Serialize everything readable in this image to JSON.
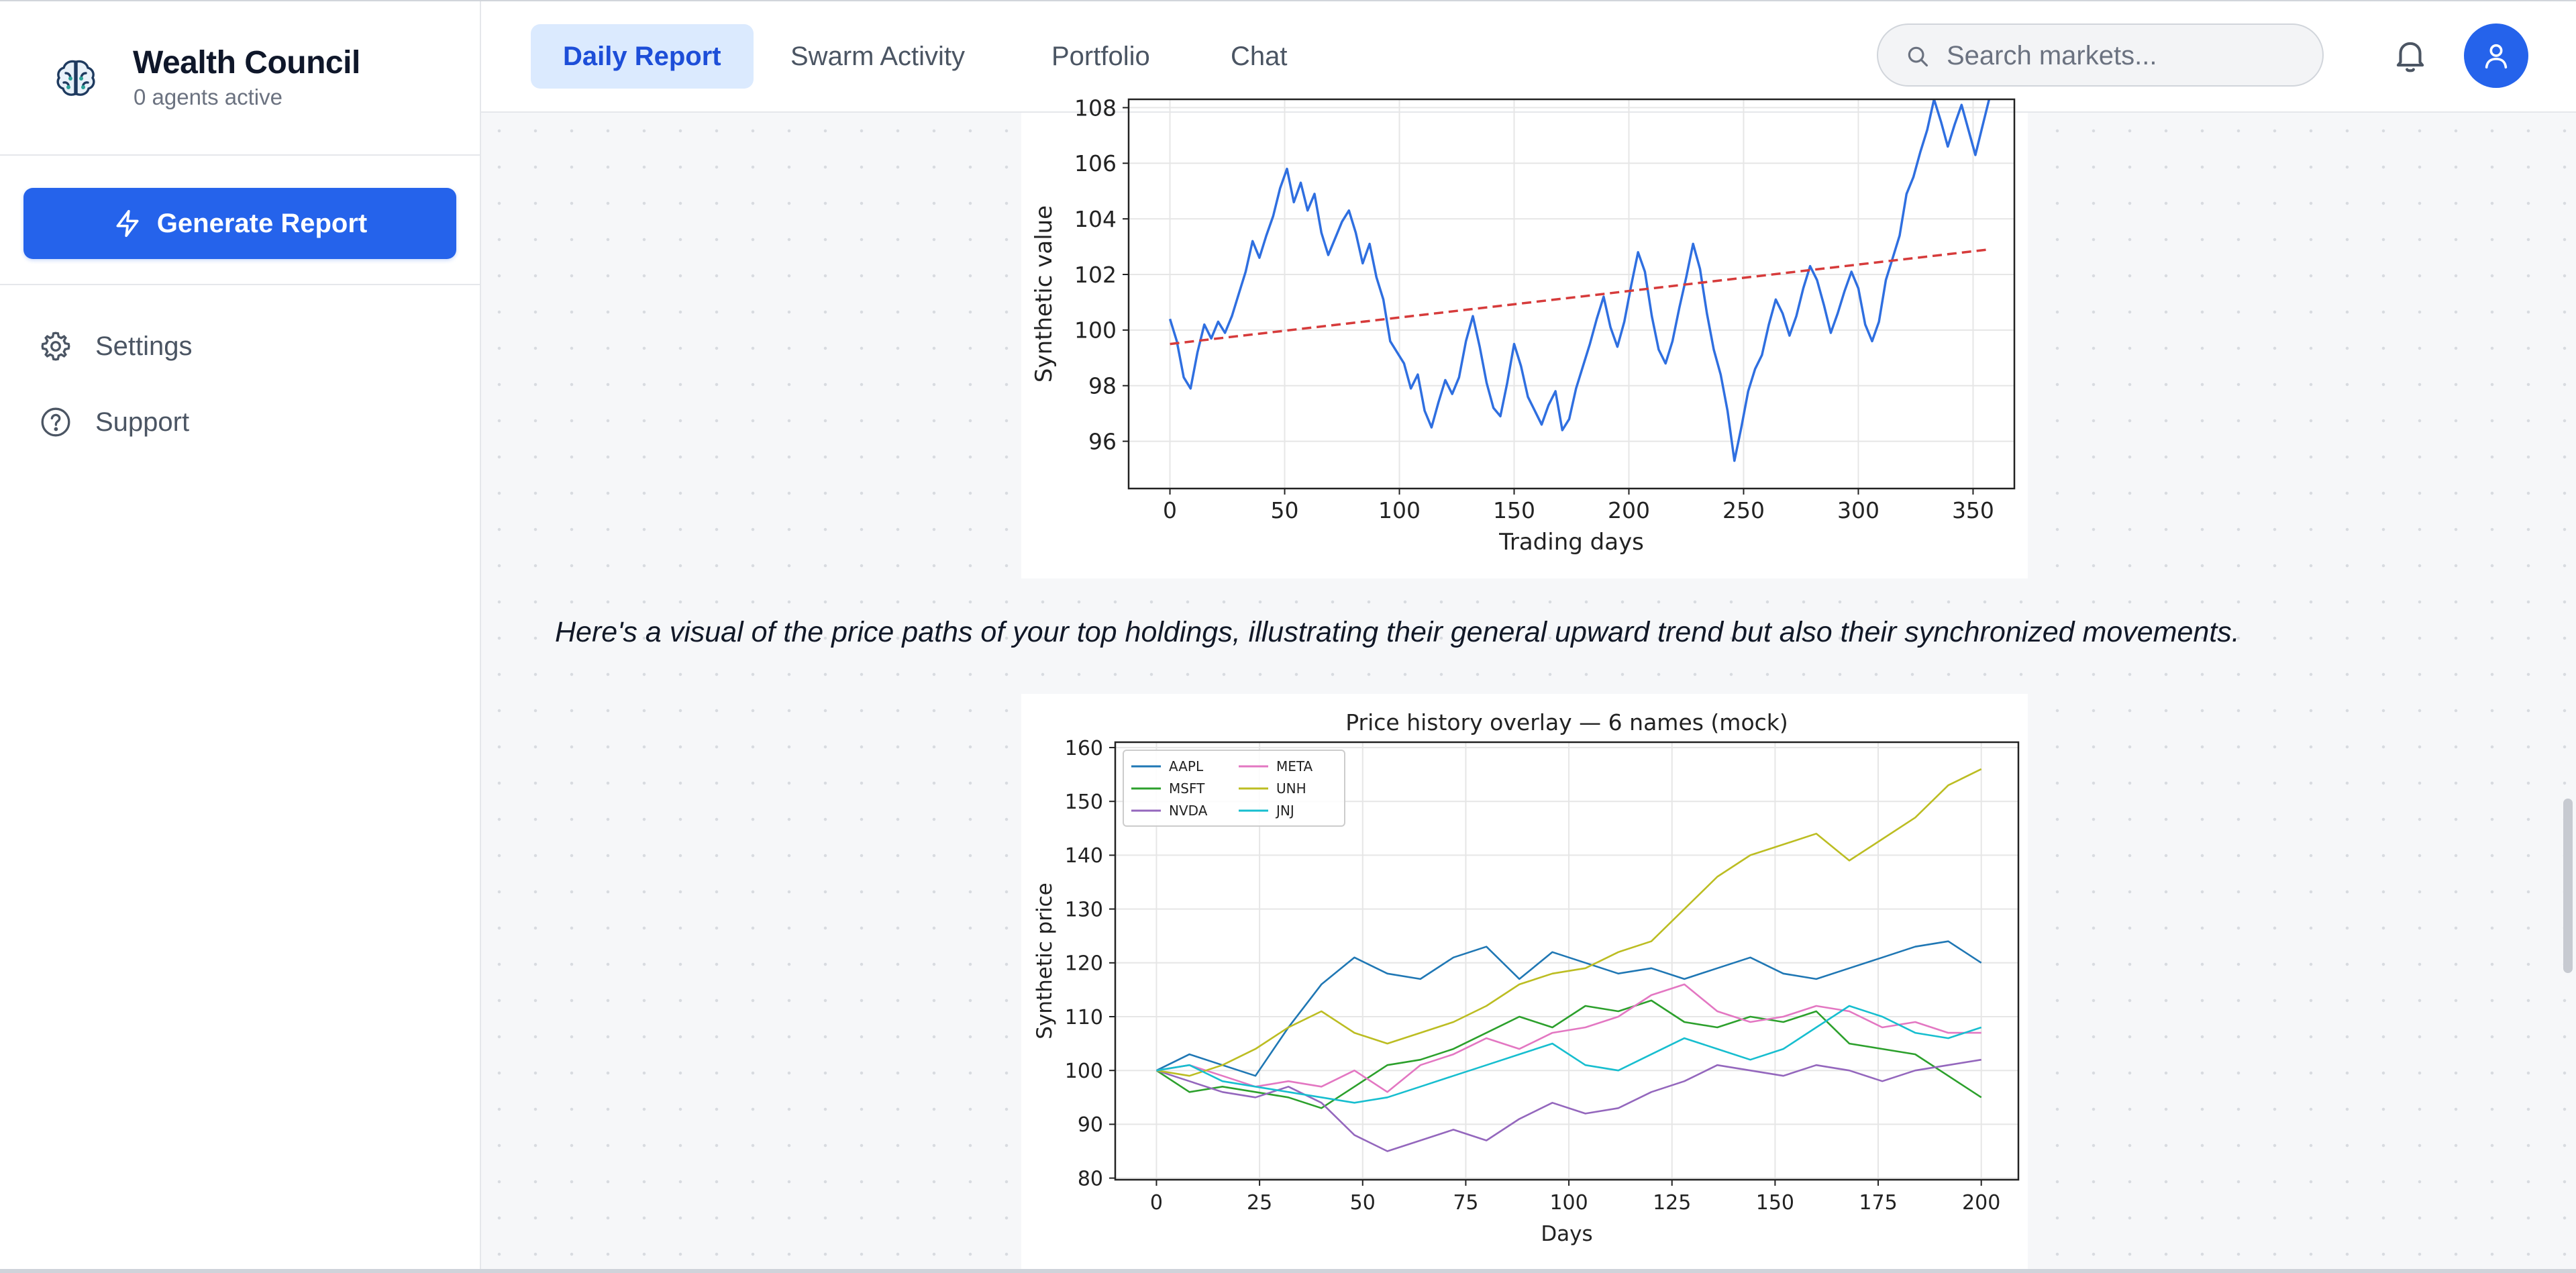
{
  "app": {
    "name": "Wealth Council",
    "agents_status": "0 agents active",
    "logo_icon": "brain-icon"
  },
  "sidebar": {
    "generate_label": "Generate Report",
    "items": [
      {
        "label": "Settings",
        "icon": "gear-icon"
      },
      {
        "label": "Support",
        "icon": "help-circle-icon"
      }
    ]
  },
  "header": {
    "tabs": [
      {
        "label": "Daily Report",
        "active": true
      },
      {
        "label": "Swarm Activity",
        "active": false
      },
      {
        "label": "Portfolio",
        "active": false
      },
      {
        "label": "Chat",
        "active": false
      }
    ],
    "search_placeholder": "Search markets..."
  },
  "main": {
    "caption": "Here's a visual of the price paths of your top holdings, illustrating their general upward trend but also their synchronized movements."
  },
  "colors": {
    "accent": "#2563eb",
    "active_tab_bg": "#dbeafe",
    "active_tab_text": "#1d4ed8"
  },
  "chart_data": [
    {
      "type": "line",
      "title": "",
      "xlabel": "Trading days",
      "ylabel": "Synthetic value",
      "xlim": [
        -18,
        368
      ],
      "ylim": [
        94.3,
        108.3
      ],
      "xticks": [
        0,
        50,
        100,
        150,
        200,
        250,
        300,
        350
      ],
      "yticks": [
        96,
        98,
        100,
        102,
        104,
        106,
        108
      ],
      "grid": true,
      "series": [
        {
          "color": "#2f6fe0",
          "style": "solid",
          "x": [
            0,
            3,
            6,
            9,
            12,
            15,
            18,
            21,
            24,
            27,
            30,
            33,
            36,
            39,
            42,
            45,
            48,
            51,
            54,
            57,
            60,
            63,
            66,
            69,
            72,
            75,
            78,
            81,
            84,
            87,
            90,
            93,
            96,
            99,
            102,
            105,
            108,
            111,
            114,
            117,
            120,
            123,
            126,
            129,
            132,
            135,
            138,
            141,
            144,
            147,
            150,
            153,
            156,
            159,
            162,
            165,
            168,
            171,
            174,
            177,
            180,
            183,
            186,
            189,
            192,
            195,
            198,
            201,
            204,
            207,
            210,
            213,
            216,
            219,
            222,
            225,
            228,
            231,
            234,
            237,
            240,
            243,
            246,
            249,
            252,
            255,
            258,
            261,
            264,
            267,
            270,
            273,
            276,
            279,
            282,
            285,
            288,
            291,
            294,
            297,
            300,
            303,
            306,
            309,
            312,
            315,
            318,
            321,
            324,
            327,
            330,
            333,
            336,
            339,
            342,
            345,
            348,
            351,
            354,
            357
          ],
          "y": [
            100.4,
            99.6,
            98.3,
            97.9,
            99.2,
            100.2,
            99.7,
            100.3,
            99.9,
            100.5,
            101.3,
            102.1,
            103.2,
            102.6,
            103.4,
            104.1,
            105.1,
            105.8,
            104.6,
            105.3,
            104.3,
            104.9,
            103.5,
            102.7,
            103.3,
            103.9,
            104.3,
            103.5,
            102.4,
            103.1,
            101.9,
            101.1,
            99.6,
            99.2,
            98.8,
            97.9,
            98.4,
            97.1,
            96.5,
            97.4,
            98.2,
            97.7,
            98.3,
            99.6,
            100.5,
            99.4,
            98.1,
            97.2,
            96.9,
            98.1,
            99.5,
            98.7,
            97.6,
            97.1,
            96.6,
            97.3,
            97.8,
            96.4,
            96.8,
            97.9,
            98.7,
            99.5,
            100.4,
            101.2,
            100.1,
            99.4,
            100.3,
            101.6,
            102.8,
            102.1,
            100.5,
            99.3,
            98.8,
            99.6,
            100.8,
            101.9,
            103.1,
            102.2,
            100.6,
            99.3,
            98.4,
            97.1,
            95.3,
            96.5,
            97.8,
            98.6,
            99.1,
            100.2,
            101.1,
            100.6,
            99.8,
            100.5,
            101.5,
            102.3,
            101.8,
            100.9,
            99.9,
            100.6,
            101.4,
            102.1,
            101.5,
            100.2,
            99.6,
            100.3,
            101.8,
            102.6,
            103.4,
            104.9,
            105.5,
            106.4,
            107.2,
            108.3,
            107.5,
            106.6,
            107.4,
            108.1,
            107.2,
            106.3,
            107.3,
            108.3
          ]
        },
        {
          "color": "#d63b3b",
          "style": "dashed",
          "x": [
            0,
            357
          ],
          "y": [
            99.5,
            102.9
          ]
        }
      ]
    },
    {
      "type": "line",
      "title": "Price history overlay — 6 names (mock)",
      "xlabel": "Days",
      "ylabel": "Synthetic price",
      "xlim": [
        -10,
        209
      ],
      "ylim": [
        79.7,
        161
      ],
      "xticks": [
        0,
        25,
        50,
        75,
        100,
        125,
        150,
        175,
        200
      ],
      "yticks": [
        80,
        90,
        100,
        110,
        120,
        130,
        140,
        150,
        160
      ],
      "grid": true,
      "legend": "top-left",
      "x": [
        0,
        8,
        16,
        24,
        32,
        40,
        48,
        56,
        64,
        72,
        80,
        88,
        96,
        104,
        112,
        120,
        128,
        136,
        144,
        152,
        160,
        168,
        176,
        184,
        192,
        200
      ],
      "series": [
        {
          "name": "AAPL",
          "color": "#1f77b4",
          "values": [
            100,
            103,
            101,
            99,
            108,
            116,
            121,
            118,
            117,
            121,
            123,
            117,
            122,
            120,
            118,
            119,
            117,
            119,
            121,
            118,
            117,
            119,
            121,
            123,
            124,
            120
          ]
        },
        {
          "name": "MSFT",
          "color": "#2ca02c",
          "values": [
            100,
            96,
            97,
            96,
            95,
            93,
            97,
            101,
            102,
            104,
            107,
            110,
            108,
            112,
            111,
            113,
            109,
            108,
            110,
            109,
            111,
            105,
            104,
            103,
            99,
            95
          ]
        },
        {
          "name": "NVDA",
          "color": "#9467bd",
          "values": [
            100,
            98,
            96,
            95,
            97,
            94,
            88,
            85,
            87,
            89,
            87,
            91,
            94,
            92,
            93,
            96,
            98,
            101,
            100,
            99,
            101,
            100,
            98,
            100,
            101,
            102
          ]
        },
        {
          "name": "META",
          "color": "#e377c2",
          "values": [
            100,
            101,
            99,
            97,
            98,
            97,
            100,
            96,
            101,
            103,
            106,
            104,
            107,
            108,
            110,
            114,
            116,
            111,
            109,
            110,
            112,
            111,
            108,
            109,
            107,
            107
          ]
        },
        {
          "name": "UNH",
          "color": "#bcbd22",
          "values": [
            100,
            99,
            101,
            104,
            108,
            111,
            107,
            105,
            107,
            109,
            112,
            116,
            118,
            119,
            122,
            124,
            130,
            136,
            140,
            142,
            144,
            139,
            143,
            147,
            153,
            156
          ]
        },
        {
          "name": "JNJ",
          "color": "#17becf",
          "values": [
            100,
            101,
            98,
            97,
            96,
            95,
            94,
            95,
            97,
            99,
            101,
            103,
            105,
            101,
            100,
            103,
            106,
            104,
            102,
            104,
            108,
            112,
            110,
            107,
            106,
            108
          ]
        }
      ]
    }
  ]
}
